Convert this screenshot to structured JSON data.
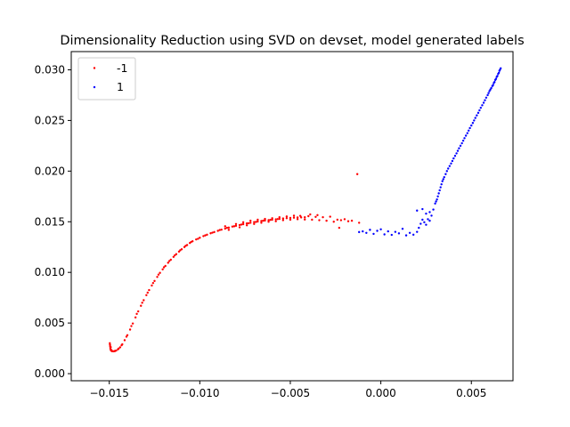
{
  "chart_data": {
    "type": "scatter",
    "title": "Dimensionality Reduction using SVD on devset, model generated labels",
    "xlabel": "",
    "ylabel": "",
    "xlim": [
      -0.0171,
      0.0073
    ],
    "ylim": [
      -0.0007,
      0.0318
    ],
    "x_ticks": [
      {
        "value": -0.015,
        "label": "−0.015"
      },
      {
        "value": -0.01,
        "label": "−0.010"
      },
      {
        "value": -0.005,
        "label": "−0.005"
      },
      {
        "value": 0.0,
        "label": "0.000"
      },
      {
        "value": 0.005,
        "label": "0.005"
      }
    ],
    "y_ticks": [
      {
        "value": 0.0,
        "label": "0.000"
      },
      {
        "value": 0.005,
        "label": "0.005"
      },
      {
        "value": 0.01,
        "label": "0.010"
      },
      {
        "value": 0.015,
        "label": "0.015"
      },
      {
        "value": 0.02,
        "label": "0.020"
      },
      {
        "value": 0.025,
        "label": "0.025"
      },
      {
        "value": 0.03,
        "label": "0.030"
      }
    ],
    "grid": false,
    "legend_position": "top-left",
    "series": [
      {
        "name": "-1",
        "color": "#ff0000",
        "points": [
          [
            -0.01497,
            0.003
          ],
          [
            -0.01496,
            0.00285
          ],
          [
            -0.01495,
            0.0027
          ],
          [
            -0.01494,
            0.00255
          ],
          [
            -0.01493,
            0.0024
          ],
          [
            -0.0149,
            0.00228
          ],
          [
            -0.01485,
            0.00222
          ],
          [
            -0.01478,
            0.0022
          ],
          [
            -0.0147,
            0.00222
          ],
          [
            -0.01462,
            0.00228
          ],
          [
            -0.01452,
            0.0024
          ],
          [
            -0.0144,
            0.0026
          ],
          [
            -0.01428,
            0.0029
          ],
          [
            -0.01415,
            0.0033
          ],
          [
            -0.014,
            0.0038
          ],
          [
            -0.01385,
            0.00435
          ],
          [
            -0.0137,
            0.00495
          ],
          [
            -0.01355,
            0.00555
          ],
          [
            -0.0134,
            0.00615
          ],
          [
            -0.01325,
            0.0067
          ],
          [
            -0.0131,
            0.00725
          ],
          [
            -0.01295,
            0.00775
          ],
          [
            -0.0128,
            0.00825
          ],
          [
            -0.01265,
            0.0087
          ],
          [
            -0.0125,
            0.00915
          ],
          [
            -0.01235,
            0.00955
          ],
          [
            -0.0122,
            0.00995
          ],
          [
            -0.01205,
            0.0103
          ],
          [
            -0.0119,
            0.01063
          ],
          [
            -0.01175,
            0.01095
          ],
          [
            -0.0116,
            0.01125
          ],
          [
            -0.01145,
            0.01153
          ],
          [
            -0.0113,
            0.0118
          ],
          [
            -0.01115,
            0.01205
          ],
          [
            -0.011,
            0.01228
          ],
          [
            -0.01085,
            0.0125
          ],
          [
            -0.0107,
            0.0127
          ],
          [
            -0.01055,
            0.0129
          ],
          [
            -0.0104,
            0.01307
          ],
          [
            -0.0102,
            0.01325
          ],
          [
            -0.01,
            0.01342
          ],
          [
            -0.0098,
            0.01358
          ],
          [
            -0.0096,
            0.01372
          ],
          [
            -0.0094,
            0.01386
          ],
          [
            -0.0092,
            0.01398
          ],
          [
            -0.009,
            0.0141
          ],
          [
            -0.0088,
            0.01422
          ],
          [
            -0.0086,
            0.01432
          ],
          [
            -0.0084,
            0.01442
          ],
          [
            -0.0082,
            0.01452
          ],
          [
            -0.008,
            0.0146
          ],
          [
            -0.0078,
            0.01468
          ],
          [
            -0.0076,
            0.01476
          ],
          [
            -0.0074,
            0.01484
          ],
          [
            -0.0072,
            0.0149
          ],
          [
            -0.007,
            0.01496
          ],
          [
            -0.0068,
            0.01502
          ],
          [
            -0.0066,
            0.01507
          ],
          [
            -0.0064,
            0.01512
          ],
          [
            -0.0062,
            0.01516
          ],
          [
            -0.006,
            0.0152
          ],
          [
            -0.0058,
            0.01524
          ],
          [
            -0.0056,
            0.01528
          ],
          [
            -0.0054,
            0.01532
          ],
          [
            -0.0052,
            0.01535
          ],
          [
            -0.005,
            0.01538
          ],
          [
            -0.0048,
            0.0154
          ],
          [
            -0.0046,
            0.01542
          ],
          [
            -0.0044,
            0.01543
          ],
          [
            -0.0042,
            0.01544
          ],
          [
            -0.01492,
            0.00262
          ],
          [
            -0.01488,
            0.00232
          ],
          [
            -0.01468,
            0.00225
          ],
          [
            -0.01448,
            0.00248
          ],
          [
            -0.01432,
            0.0028
          ],
          [
            -0.01405,
            0.00365
          ],
          [
            -0.01378,
            0.0047
          ],
          [
            -0.01348,
            0.0059
          ],
          [
            -0.01318,
            0.007
          ],
          [
            -0.01288,
            0.008
          ],
          [
            -0.01258,
            0.00895
          ],
          [
            -0.01228,
            0.00978
          ],
          [
            -0.01198,
            0.0105
          ],
          [
            -0.01168,
            0.01112
          ],
          [
            -0.01138,
            0.01168
          ],
          [
            -0.01108,
            0.01218
          ],
          [
            -0.01078,
            0.01262
          ],
          [
            -0.01048,
            0.013
          ],
          [
            -0.0101,
            0.01332
          ],
          [
            -0.0097,
            0.01365
          ],
          [
            -0.0093,
            0.01392
          ],
          [
            -0.0089,
            0.01418
          ],
          [
            -0.0085,
            0.0144
          ],
          [
            -0.0081,
            0.01455
          ],
          [
            -0.0077,
            0.01472
          ],
          [
            -0.0073,
            0.01485
          ],
          [
            -0.0069,
            0.01498
          ],
          [
            -0.0065,
            0.0151
          ],
          [
            -0.0061,
            0.01518
          ],
          [
            -0.0057,
            0.01526
          ],
          [
            -0.0086,
            0.01455
          ],
          [
            -0.0084,
            0.0142
          ],
          [
            -0.008,
            0.01478
          ],
          [
            -0.0078,
            0.01445
          ],
          [
            -0.0076,
            0.01495
          ],
          [
            -0.0074,
            0.01465
          ],
          [
            -0.0072,
            0.0151
          ],
          [
            -0.007,
            0.01478
          ],
          [
            -0.0068,
            0.0152
          ],
          [
            -0.0066,
            0.0149
          ],
          [
            -0.0064,
            0.01528
          ],
          [
            -0.0062,
            0.015
          ],
          [
            -0.006,
            0.01535
          ],
          [
            -0.0058,
            0.01505
          ],
          [
            -0.0056,
            0.01545
          ],
          [
            -0.0054,
            0.01515
          ],
          [
            -0.0052,
            0.01552
          ],
          [
            -0.005,
            0.0152
          ],
          [
            -0.0048,
            0.0156
          ],
          [
            -0.0046,
            0.01525
          ],
          [
            -0.00445,
            0.01558
          ],
          [
            -0.0042,
            0.01522
          ],
          [
            -0.004,
            0.01555
          ],
          [
            -0.0038,
            0.0152
          ],
          [
            -0.0036,
            0.01548
          ],
          [
            -0.0034,
            0.01515
          ],
          [
            -0.0032,
            0.01545
          ],
          [
            -0.003,
            0.0151
          ],
          [
            -0.0028,
            0.0155
          ],
          [
            -0.0026,
            0.015
          ],
          [
            -0.0024,
            0.0152
          ],
          [
            -0.0022,
            0.01515
          ],
          [
            -0.002,
            0.01525
          ],
          [
            -0.0018,
            0.01505
          ],
          [
            -0.0016,
            0.0151
          ],
          [
            -0.0023,
            0.0144
          ],
          [
            -0.0012,
            0.0149
          ],
          [
            -0.0013,
            0.0197
          ],
          [
            -0.0035,
            0.01565
          ],
          [
            -0.0039,
            0.01572
          ]
        ]
      },
      {
        "name": "1",
        "color": "#0000ff",
        "points": [
          [
            -0.0012,
            0.01398
          ],
          [
            -0.001,
            0.01405
          ],
          [
            -0.0008,
            0.0139
          ],
          [
            -0.0006,
            0.0142
          ],
          [
            -0.0004,
            0.0138
          ],
          [
            -0.0002,
            0.0141
          ],
          [
            0.0,
            0.01425
          ],
          [
            0.0002,
            0.01375
          ],
          [
            0.0004,
            0.01405
          ],
          [
            0.0006,
            0.0137
          ],
          [
            0.0008,
            0.014
          ],
          [
            0.001,
            0.01385
          ],
          [
            0.0012,
            0.0143
          ],
          [
            0.0014,
            0.01365
          ],
          [
            0.0016,
            0.0139
          ],
          [
            0.0018,
            0.01372
          ],
          [
            0.002,
            0.014
          ],
          [
            0.0021,
            0.0144
          ],
          [
            0.0022,
            0.0148
          ],
          [
            0.0023,
            0.0152
          ],
          [
            0.0024,
            0.01495
          ],
          [
            0.0025,
            0.0147
          ],
          [
            0.0026,
            0.01525
          ],
          [
            0.0027,
            0.0151
          ],
          [
            0.0028,
            0.0156
          ],
          [
            0.002,
            0.0161
          ],
          [
            0.0025,
            0.0158
          ],
          [
            0.0023,
            0.01625
          ],
          [
            0.0027,
            0.01595
          ],
          [
            0.0029,
            0.0162
          ],
          [
            0.003,
            0.0168
          ],
          [
            0.0031,
            0.0172
          ],
          [
            0.0032,
            0.0178
          ],
          [
            0.0033,
            0.0184
          ],
          [
            0.0034,
            0.019
          ],
          [
            0.0035,
            0.0194
          ],
          [
            0.00365,
            0.02
          ],
          [
            0.0038,
            0.0205
          ],
          [
            0.00395,
            0.021
          ],
          [
            0.0041,
            0.0215
          ],
          [
            0.00425,
            0.022
          ],
          [
            0.0044,
            0.0225
          ],
          [
            0.00455,
            0.023
          ],
          [
            0.0047,
            0.0235
          ],
          [
            0.00485,
            0.024
          ],
          [
            0.005,
            0.0245
          ],
          [
            0.00515,
            0.025
          ],
          [
            0.0053,
            0.0255
          ],
          [
            0.00545,
            0.026
          ],
          [
            0.0056,
            0.0265
          ],
          [
            0.00575,
            0.027
          ],
          [
            0.0059,
            0.0275
          ],
          [
            0.006,
            0.0279
          ],
          [
            0.0061,
            0.0282
          ],
          [
            0.0062,
            0.0285
          ],
          [
            0.00628,
            0.0288
          ],
          [
            0.00636,
            0.0291
          ],
          [
            0.00644,
            0.0294
          ],
          [
            0.00652,
            0.0297
          ],
          [
            0.00658,
            0.03
          ],
          [
            0.00662,
            0.03015
          ],
          [
            0.00655,
            0.0299
          ],
          [
            0.00648,
            0.0296
          ],
          [
            0.0064,
            0.0293
          ],
          [
            0.00632,
            0.029
          ],
          [
            0.00624,
            0.0287
          ],
          [
            0.00616,
            0.0284
          ],
          [
            0.00605,
            0.02805
          ],
          [
            0.00595,
            0.0277
          ],
          [
            0.00582,
            0.02725
          ],
          [
            0.00568,
            0.02675
          ],
          [
            0.00552,
            0.02625
          ],
          [
            0.00538,
            0.02575
          ],
          [
            0.00522,
            0.02525
          ],
          [
            0.00508,
            0.02475
          ],
          [
            0.00492,
            0.02425
          ],
          [
            0.00478,
            0.02375
          ],
          [
            0.00462,
            0.02325
          ],
          [
            0.00448,
            0.02275
          ],
          [
            0.00432,
            0.02225
          ],
          [
            0.00418,
            0.02175
          ],
          [
            0.00402,
            0.02125
          ],
          [
            0.00388,
            0.02075
          ],
          [
            0.00372,
            0.02025
          ],
          [
            0.00358,
            0.0197
          ],
          [
            0.00345,
            0.0192
          ],
          [
            0.00335,
            0.0187
          ],
          [
            0.00325,
            0.0181
          ],
          [
            0.00315,
            0.0175
          ],
          [
            0.00305,
            0.017
          ]
        ]
      }
    ]
  }
}
